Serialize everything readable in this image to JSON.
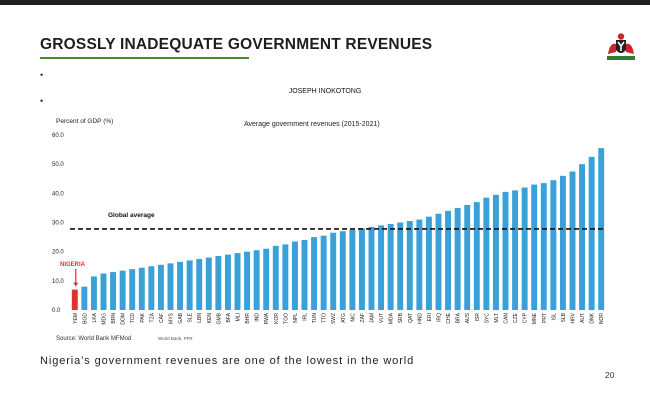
{
  "slide": {
    "title": "GROSSLY INADEQUATE GOVERNMENT REVENUES",
    "author": "JOSEPH INOKOTONG",
    "caption": "Nigeria’s government revenues are one of the lowest in the world",
    "page_number": "20",
    "accent_color": "#4a8a2a",
    "bullet_marks": [
      "•",
      "•"
    ]
  },
  "chart_data": {
    "type": "bar",
    "title": "Average government revenues (2015-2021)",
    "ylabel": "Percent of GDP (%)",
    "ylim": [
      0,
      60
    ],
    "yticks": [
      "0.0",
      "10.0",
      "20.0",
      "30.0",
      "40.0",
      "50.0",
      "60.0"
    ],
    "bar_color": "#3aa0d8",
    "highlight_color": "#e03030",
    "highlight_label": "NIGERIA",
    "reference_line": {
      "label": "Global average",
      "value": 27.8
    },
    "source": "Source: World Bank MFMod",
    "source_extra": "World Bank, PFR",
    "categories": [
      "YEM",
      "BGD",
      "LKA",
      "MDG",
      "BRN",
      "DOM",
      "TCD",
      "PAK",
      "TZA",
      "CAF",
      "MYS",
      "GAB",
      "SLE",
      "LBN",
      "KEN",
      "GMB",
      "BFA",
      "MLI",
      "BHR",
      "IND",
      "RWA",
      "KOR",
      "TGO",
      "NPL",
      "IRL",
      "TUN",
      "TTO",
      "SWZ",
      "ATG",
      "NIC",
      "ZAF",
      "JAM",
      "VUT",
      "MDA",
      "SRB",
      "QAT",
      "HND",
      "ERI",
      "IRQ",
      "CHE",
      "BRA",
      "AUS",
      "ISR",
      "SYC",
      "MLT",
      "CAN",
      "CZE",
      "CYP",
      "MNE",
      "PRT",
      "ISL",
      "SLB",
      "HRV",
      "AUT",
      "DNK",
      "NOR"
    ],
    "values": [
      7.0,
      8.0,
      11.5,
      12.5,
      13.0,
      13.5,
      14.0,
      14.5,
      15.0,
      15.5,
      16.0,
      16.5,
      17.0,
      17.5,
      18.0,
      18.5,
      19.0,
      19.5,
      20.0,
      20.5,
      21.0,
      22.0,
      22.5,
      23.5,
      24.0,
      25.0,
      25.5,
      26.5,
      27.0,
      27.5,
      28.0,
      28.5,
      29.0,
      29.5,
      30.0,
      30.5,
      31.0,
      32.0,
      33.0,
      34.0,
      35.0,
      36.0,
      37.0,
      38.5,
      39.5,
      40.5,
      41.0,
      42.0,
      43.0,
      43.5,
      44.5,
      46.0,
      47.5,
      50.0,
      52.5,
      55.5
    ]
  }
}
